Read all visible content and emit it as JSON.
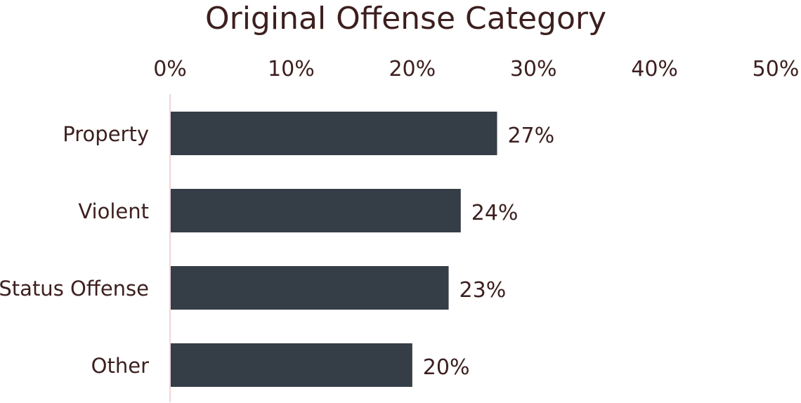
{
  "chart_data": {
    "type": "bar",
    "orientation": "horizontal",
    "title": "Original Offense Category",
    "categories": [
      "Property",
      "Violent",
      "Status Offense",
      "Other"
    ],
    "values": [
      27,
      24,
      23,
      20
    ],
    "value_labels": [
      "27%",
      "24%",
      "23%",
      "20%"
    ],
    "xlim": [
      0,
      50
    ],
    "x_ticks": [
      0,
      10,
      20,
      30,
      40,
      50
    ],
    "x_tick_labels": [
      "0%",
      "10%",
      "20%",
      "30%",
      "40%",
      "50%"
    ],
    "x_axis_position": "top",
    "xlabel": "",
    "ylabel": "",
    "grid": false,
    "colors": {
      "bar": "#353d47",
      "text": "#3d1f1f",
      "axis_line": "#e8c8c8"
    }
  }
}
